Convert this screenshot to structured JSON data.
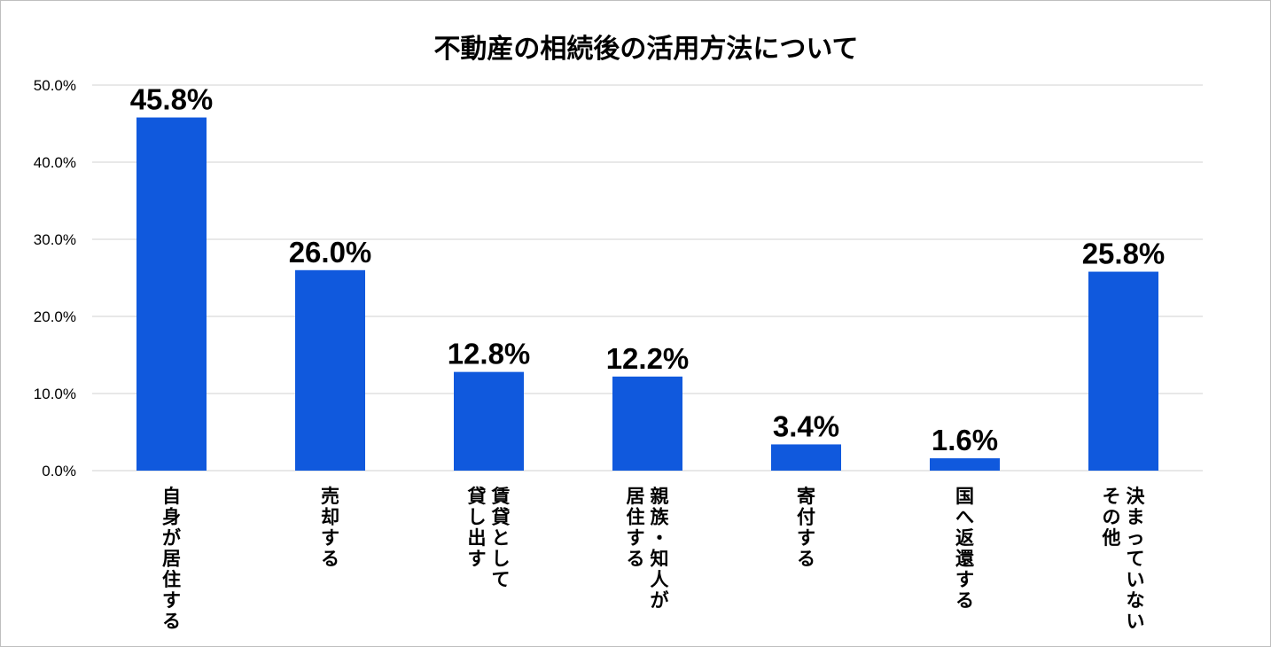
{
  "chart_data": {
    "type": "bar",
    "title": "不動産の相続後の活用方法について",
    "xlabel": "",
    "ylabel": "",
    "ylim": [
      0,
      50
    ],
    "yticks": [
      "0.0%",
      "10.0%",
      "20.0%",
      "30.0%",
      "40.0%",
      "50.0%"
    ],
    "ytick_values": [
      0,
      10,
      20,
      30,
      40,
      50
    ],
    "grid": true,
    "bar_color": "#1059DD",
    "grid_color": "#D9D9D9",
    "categories": [
      {
        "lines": [
          "自身が居住する"
        ]
      },
      {
        "lines": [
          "売却する"
        ]
      },
      {
        "lines": [
          "賃貸として",
          "貸し出す"
        ]
      },
      {
        "lines": [
          "親族・知人が",
          "居住する"
        ]
      },
      {
        "lines": [
          "寄付する"
        ]
      },
      {
        "lines": [
          "国へ返還する"
        ]
      },
      {
        "lines": [
          "決まっていない",
          "その他"
        ]
      }
    ],
    "values": [
      45.8,
      26.0,
      12.8,
      12.2,
      3.4,
      1.6,
      25.8
    ],
    "value_labels": [
      "45.8%",
      "26.0%",
      "12.8%",
      "12.2%",
      "3.4%",
      "1.6%",
      "25.8%"
    ]
  }
}
